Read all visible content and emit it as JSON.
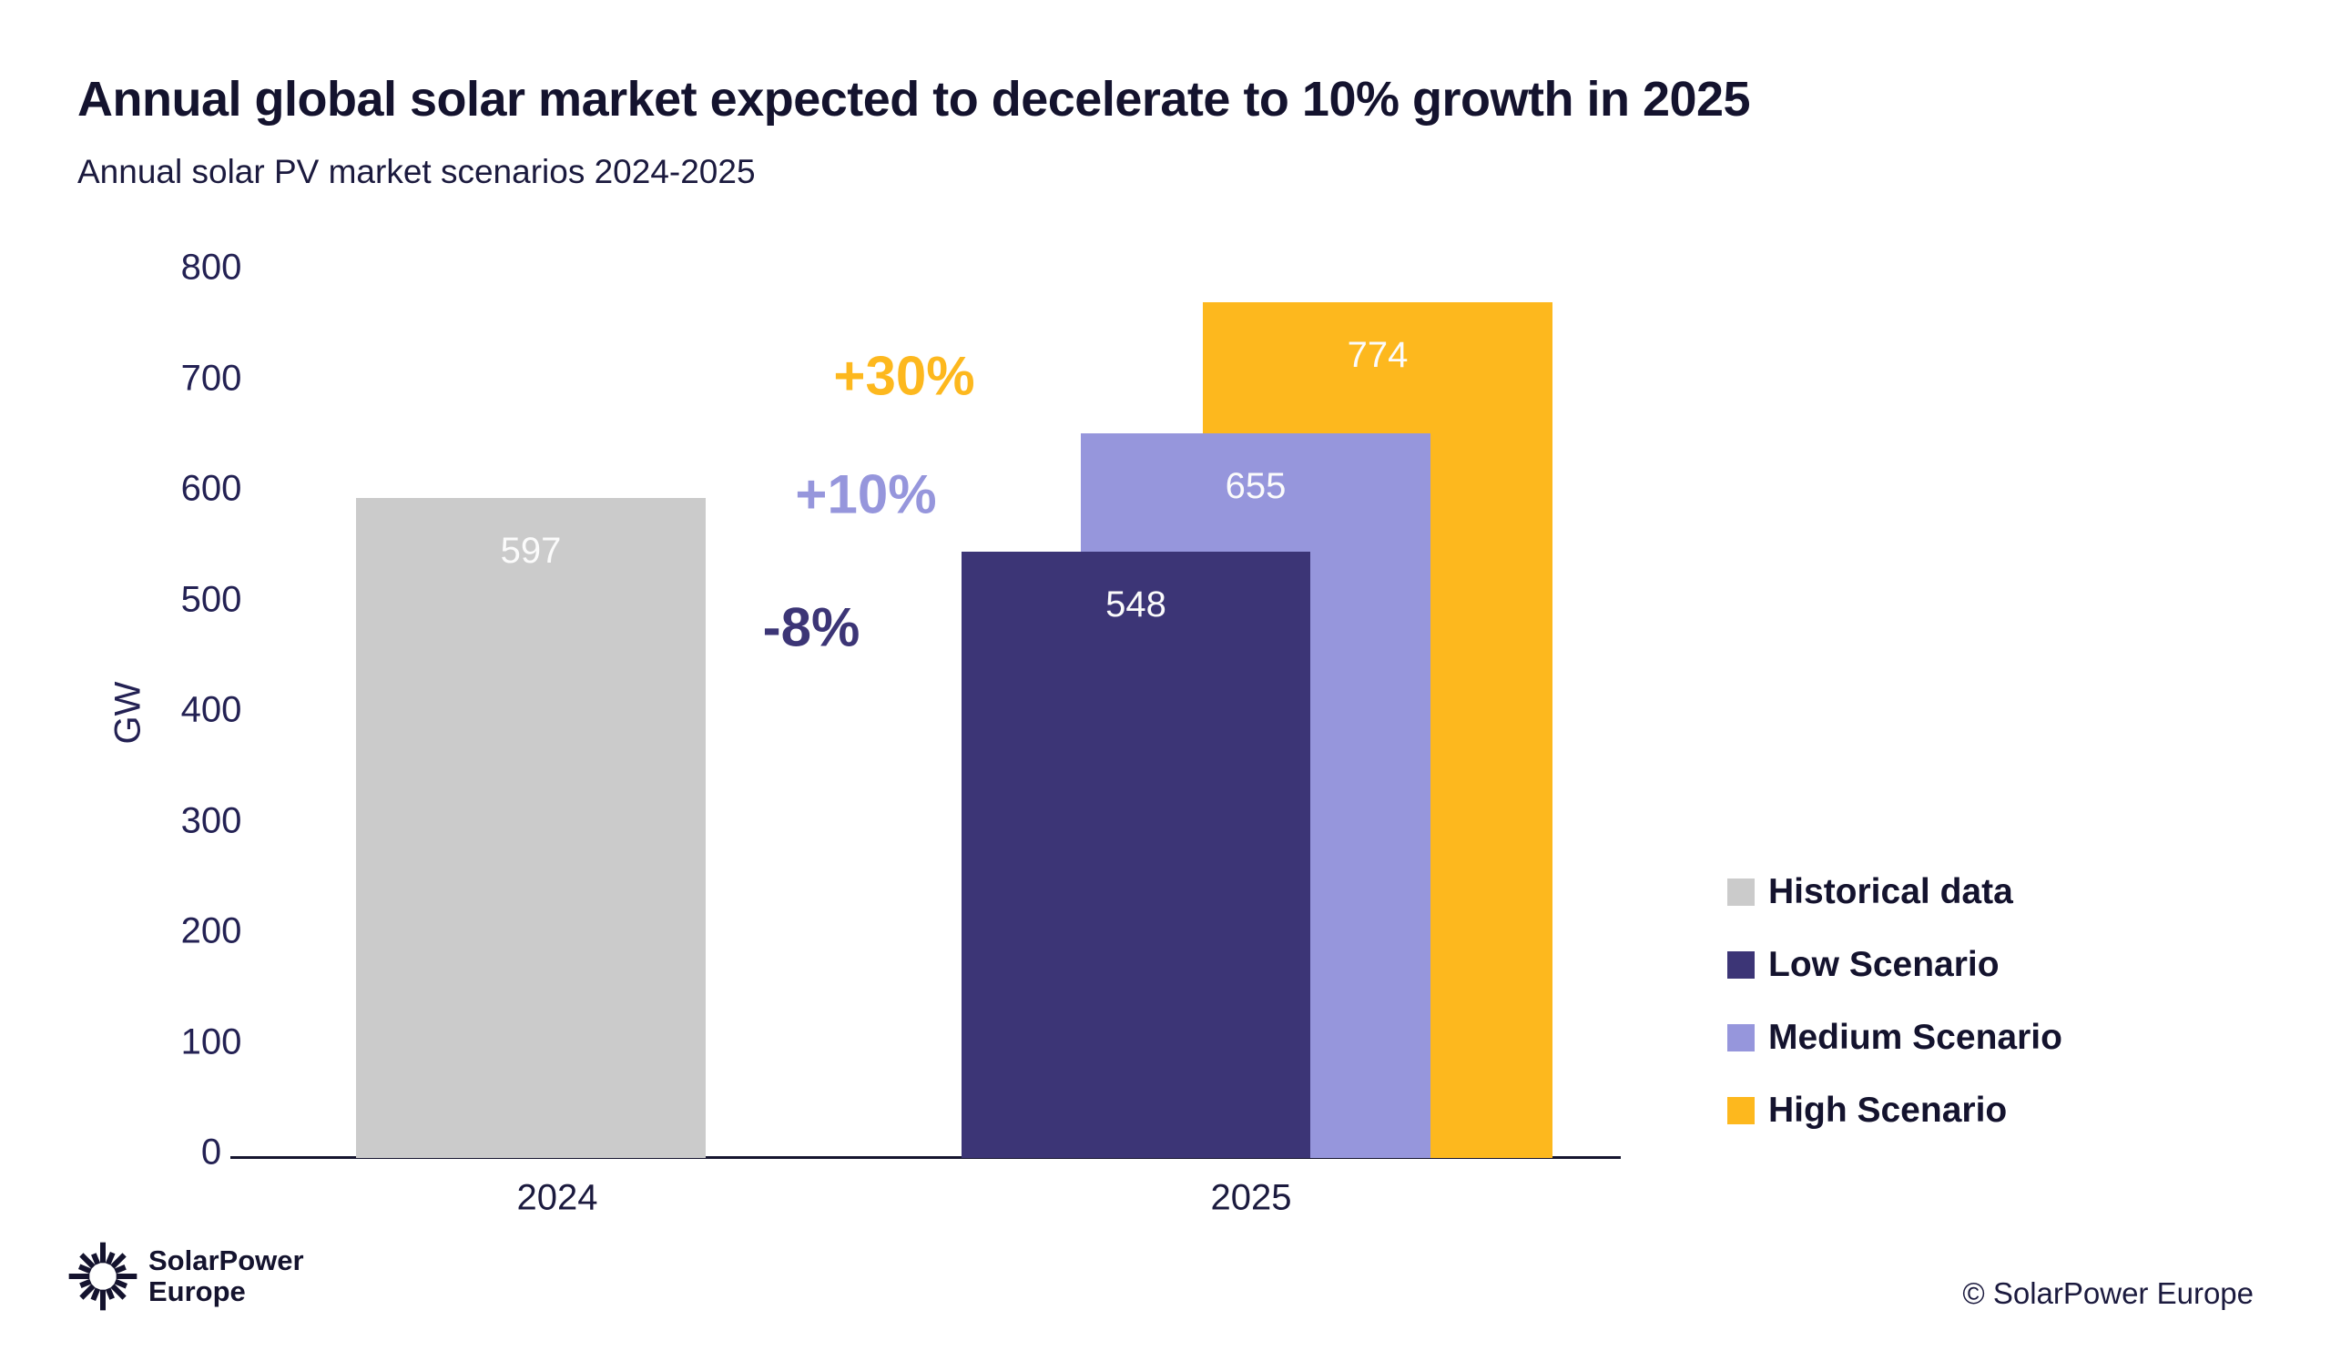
{
  "chart_data": {
    "type": "bar",
    "title": "Annual global solar market expected to decelerate to 10% growth in 2025",
    "subtitle": "Annual solar PV market scenarios 2024-2025",
    "ylabel": "GW",
    "ylim": [
      0,
      800
    ],
    "yticks": [
      0,
      100,
      200,
      300,
      400,
      500,
      600,
      700,
      800
    ],
    "categories": [
      "2024",
      "2025"
    ],
    "grid": false,
    "legend_position": "right",
    "series": [
      {
        "name": "Historical data",
        "category": "2024",
        "value": 597,
        "color": "#cbcbcb"
      },
      {
        "name": "Low Scenario",
        "category": "2025",
        "value": 548,
        "color": "#3c3576"
      },
      {
        "name": "Medium Scenario",
        "category": "2025",
        "value": 655,
        "color": "#9696dc"
      },
      {
        "name": "High Scenario",
        "category": "2025",
        "value": 774,
        "color": "#fdb81e"
      }
    ],
    "annotations": [
      {
        "text": "+30%",
        "color": "#fdb81e",
        "refers_to": "High Scenario"
      },
      {
        "text": "+10%",
        "color": "#9696dc",
        "refers_to": "Medium Scenario"
      },
      {
        "text": "-8%",
        "color": "#3c3576",
        "refers_to": "Low Scenario"
      }
    ],
    "legend": [
      {
        "label": "Historical data",
        "color": "#cbcbcb"
      },
      {
        "label": "Low Scenario",
        "color": "#3c3576"
      },
      {
        "label": "Medium Scenario",
        "color": "#9696dc"
      },
      {
        "label": "High Scenario",
        "color": "#fdb81e"
      }
    ]
  },
  "footer": {
    "logo_line1": "SolarPower",
    "logo_line2": "Europe",
    "copyright": "© SolarPower Europe"
  }
}
